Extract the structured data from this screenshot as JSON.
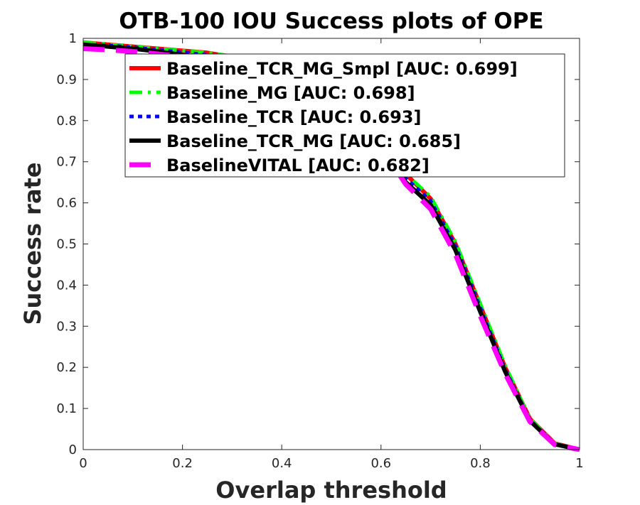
{
  "chart_data": {
    "type": "line",
    "title": "OTB-100  IOU Success plots of OPE",
    "xlabel": "Overlap threshold",
    "ylabel": "Success rate",
    "xlim": [
      0,
      1
    ],
    "ylim": [
      0,
      1
    ],
    "xticks": [
      "0",
      "0.2",
      "0.4",
      "0.6",
      "0.8",
      "1"
    ],
    "yticks": [
      "0",
      "0.1",
      "0.2",
      "0.3",
      "0.4",
      "0.5",
      "0.6",
      "0.7",
      "0.8",
      "0.9",
      "1"
    ],
    "grid": false,
    "legend_position": "top-right",
    "x": [
      0,
      0.05,
      0.1,
      0.15,
      0.2,
      0.25,
      0.3,
      0.35,
      0.4,
      0.45,
      0.5,
      0.55,
      0.6,
      0.65,
      0.7,
      0.75,
      0.8,
      0.85,
      0.9,
      0.95,
      1
    ],
    "series": [
      {
        "name": "Baseline_TCR_MG_Smpl [AUC: 0.699]",
        "color": "#ff0000",
        "dash": "solid",
        "values": [
          0.99,
          0.985,
          0.98,
          0.975,
          0.97,
          0.965,
          0.955,
          0.94,
          0.925,
          0.905,
          0.875,
          0.83,
          0.76,
          0.67,
          0.61,
          0.5,
          0.35,
          0.2,
          0.075,
          0.015,
          0.0
        ]
      },
      {
        "name": "Baseline_MG [AUC: 0.698]",
        "color": "#00ff00",
        "dash": "dashdot",
        "values": [
          0.99,
          0.985,
          0.98,
          0.975,
          0.97,
          0.965,
          0.957,
          0.942,
          0.926,
          0.905,
          0.875,
          0.83,
          0.76,
          0.67,
          0.615,
          0.505,
          0.355,
          0.205,
          0.075,
          0.015,
          0.0
        ]
      },
      {
        "name": "Baseline_TCR [AUC: 0.693]",
        "color": "#0000ff",
        "dash": "dotted",
        "values": [
          0.985,
          0.983,
          0.978,
          0.972,
          0.966,
          0.96,
          0.95,
          0.935,
          0.918,
          0.897,
          0.868,
          0.82,
          0.75,
          0.66,
          0.605,
          0.495,
          0.345,
          0.195,
          0.072,
          0.014,
          0.0
        ]
      },
      {
        "name": "Baseline_TCR_MG [AUC: 0.685]",
        "color": "#000000",
        "dash": "solid",
        "values": [
          0.985,
          0.98,
          0.975,
          0.968,
          0.96,
          0.952,
          0.942,
          0.927,
          0.91,
          0.888,
          0.86,
          0.81,
          0.74,
          0.65,
          0.595,
          0.485,
          0.335,
          0.19,
          0.07,
          0.013,
          0.0
        ]
      },
      {
        "name": "BaselineVITAL [AUC: 0.682]",
        "color": "#ff00ff",
        "dash": "dashed",
        "values": [
          0.975,
          0.972,
          0.968,
          0.962,
          0.955,
          0.947,
          0.937,
          0.922,
          0.905,
          0.883,
          0.855,
          0.805,
          0.735,
          0.645,
          0.585,
          0.475,
          0.325,
          0.185,
          0.068,
          0.012,
          0.0
        ]
      }
    ]
  }
}
